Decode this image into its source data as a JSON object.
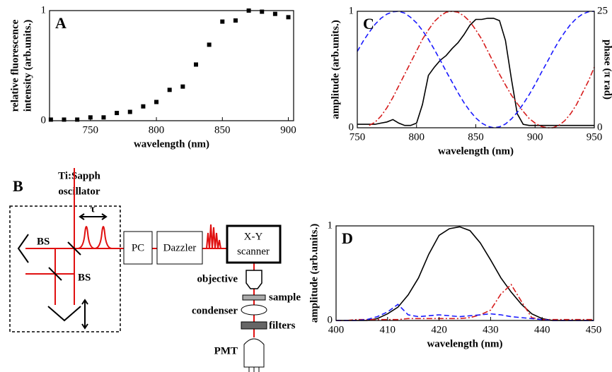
{
  "chart_data": [
    {
      "type": "scatter",
      "panel": "A",
      "xlabel": "wavelength (nm)",
      "ylabel": [
        "relative fluorescence",
        "intensity (arb.units.)"
      ],
      "x": [
        720,
        730,
        740,
        750,
        760,
        770,
        780,
        790,
        800,
        810,
        820,
        830,
        840,
        850,
        860,
        870,
        880,
        890,
        900
      ],
      "series": [
        {
          "color": "#000000",
          "values": [
            0.01,
            0.01,
            0.01,
            0.03,
            0.03,
            0.07,
            0.08,
            0.13,
            0.17,
            0.28,
            0.31,
            0.51,
            0.69,
            0.9,
            0.91,
            1.0,
            0.99,
            0.97,
            0.94
          ]
        }
      ],
      "xlim": [
        719,
        904
      ],
      "ylim": [
        0,
        1
      ],
      "xticks": [
        750,
        800,
        850,
        900
      ],
      "yticks": [
        0,
        1
      ]
    },
    {
      "type": "line",
      "panel": "C",
      "xlabel": "wavelength (nm)",
      "ylabel": "amplitude (arb.units.)",
      "y2label": "phase (π rad)",
      "x": [
        750,
        755,
        760,
        765,
        770,
        775,
        780,
        785,
        790,
        795,
        800,
        805,
        810,
        815,
        820,
        825,
        830,
        835,
        840,
        845,
        850,
        855,
        860,
        865,
        870,
        875,
        880,
        885,
        890,
        895,
        900,
        905,
        910,
        915,
        920,
        925,
        930,
        935,
        940,
        945,
        950
      ],
      "series": [
        {
          "color": "#000000",
          "style": "solid",
          "values": [
            0.03,
            0.03,
            0.03,
            0.03,
            0.04,
            0.05,
            0.07,
            0.04,
            0.02,
            0.02,
            0.04,
            0.2,
            0.45,
            0.52,
            0.58,
            0.62,
            0.68,
            0.73,
            0.8,
            0.88,
            0.93,
            0.93,
            0.94,
            0.94,
            0.92,
            0.75,
            0.42,
            0.12,
            0.03,
            0.02,
            0.02,
            0.02,
            0.02,
            0.02,
            0.02,
            0.02,
            0.02,
            0.02,
            0.02,
            0.02,
            0.02
          ]
        },
        {
          "color": "#1a1aff",
          "style": "dashed",
          "axis": "y2",
          "values": [
            16.4,
            18.6,
            20.5,
            22.2,
            23.5,
            24.4,
            24.9,
            25.0,
            24.6,
            23.7,
            22.5,
            20.9,
            19.0,
            16.8,
            14.5,
            12.1,
            9.8,
            7.5,
            5.4,
            3.6,
            2.1,
            1.0,
            0.3,
            0,
            0.2,
            0.8,
            1.9,
            3.3,
            5.1,
            7.1,
            9.3,
            11.7,
            14.0,
            16.4,
            18.6,
            20.5,
            22.2,
            23.5,
            24.4,
            24.9,
            25.0
          ]
        },
        {
          "color": "#d61c1c",
          "style": "dash-dot",
          "axis": "y2",
          "values": [
            null,
            null,
            0.5,
            1.2,
            2.5,
            4.3,
            6.5,
            9,
            11.5,
            14,
            16.5,
            19,
            21,
            22.8,
            24,
            24.8,
            25,
            24.8,
            24,
            22.8,
            21,
            19,
            16.5,
            14,
            11.5,
            9.2,
            7,
            5.2,
            3.5,
            2,
            1,
            0.3,
            0,
            0,
            0.5,
            1.5,
            3,
            5,
            7.5,
            10,
            13
          ]
        }
      ],
      "xlim": [
        750,
        950
      ],
      "ylim": [
        0,
        1
      ],
      "y2lim": [
        0,
        25
      ],
      "xticks": [
        750,
        800,
        850,
        900,
        950
      ],
      "yticks": [
        0,
        1
      ],
      "y2ticks": [
        0,
        25
      ]
    },
    {
      "type": "line",
      "panel": "D",
      "xlabel": "wavelength (nm)",
      "ylabel": "amplitude (arb.units.)",
      "x": [
        400,
        402,
        404,
        406,
        408,
        410,
        412,
        414,
        416,
        418,
        420,
        422,
        424,
        426,
        428,
        430,
        432,
        434,
        436,
        438,
        440,
        442,
        444,
        446,
        448,
        450
      ],
      "series": [
        {
          "color": "#000000",
          "style": "solid",
          "values": [
            0,
            0,
            0,
            0,
            0.02,
            0.07,
            0.14,
            0.27,
            0.45,
            0.7,
            0.9,
            0.97,
            0.99,
            0.95,
            0.82,
            0.64,
            0.45,
            0.3,
            0.17,
            0.07,
            0.02,
            0,
            0,
            0,
            0,
            0
          ]
        },
        {
          "color": "#d61c1c",
          "style": "dash-dot",
          "values": [
            0,
            0,
            0.01,
            0.01,
            0.01,
            0.01,
            0.01,
            0.02,
            0.02,
            0.02,
            0.02,
            0.02,
            0.02,
            0.03,
            0.06,
            0.11,
            0.28,
            0.38,
            0.2,
            0.03,
            0.01,
            0.01,
            0.01,
            0.01,
            0.01,
            0.01
          ]
        },
        {
          "color": "#1a1aff",
          "style": "dashed",
          "values": [
            0,
            0,
            0,
            0.01,
            0.04,
            0.09,
            0.17,
            0.06,
            0.04,
            0.05,
            0.06,
            0.05,
            0.04,
            0.05,
            0.06,
            0.07,
            0.06,
            0.04,
            0.03,
            0.02,
            0.01,
            0,
            0,
            0,
            0,
            0
          ]
        }
      ],
      "xlim": [
        400,
        450
      ],
      "ylim": [
        0,
        1
      ],
      "xticks": [
        400,
        410,
        420,
        430,
        440,
        450
      ],
      "yticks": [
        0,
        1
      ]
    }
  ],
  "diagram": {
    "panel": "B",
    "source": [
      "Ti:Sapph",
      "oscillator"
    ],
    "delay": "τ",
    "splitters": [
      "BS",
      "BS"
    ],
    "blocks": [
      "PC",
      "Dazzler",
      "X-Y",
      "scanner"
    ],
    "parts": [
      "objective",
      "sample",
      "condenser",
      "filters",
      "PMT"
    ]
  }
}
